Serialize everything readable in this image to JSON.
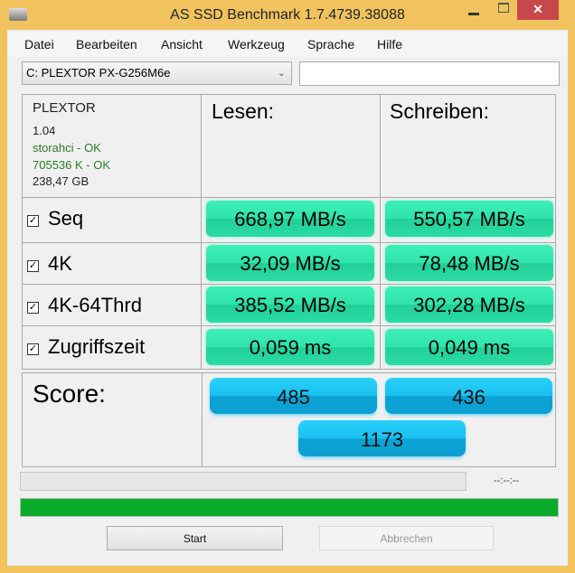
{
  "window": {
    "title": "AS SSD Benchmark 1.7.4739.38088"
  },
  "menu": [
    "Datei",
    "Bearbeiten",
    "Ansicht",
    "Werkzeug",
    "Sprache",
    "Hilfe"
  ],
  "drive_select": {
    "value": "C: PLEXTOR PX-G256M6e"
  },
  "text_field": {
    "value": ""
  },
  "drive_info": {
    "model": "PLEXTOR",
    "firmware": "1.04",
    "driver": "storahci - OK",
    "alignment": "705536 K - OK",
    "size": "238,47 GB"
  },
  "headers": {
    "read": "Lesen:",
    "write": "Schreiben:"
  },
  "tests": [
    {
      "label": "Seq",
      "checked": true,
      "read": "668,97 MB/s",
      "write": "550,57 MB/s"
    },
    {
      "label": "4K",
      "checked": true,
      "read": "32,09 MB/s",
      "write": "78,48 MB/s"
    },
    {
      "label": "4K-64Thrd",
      "checked": true,
      "read": "385,52 MB/s",
      "write": "302,28 MB/s"
    },
    {
      "label": "Zugriffszeit",
      "checked": true,
      "read": "0,059 ms",
      "write": "0,049 ms"
    }
  ],
  "score": {
    "label": "Score:",
    "read": "485",
    "write": "436",
    "total": "1173"
  },
  "progress": {
    "time": "--:--:--",
    "test_progress_percent": 0,
    "overall_progress_percent": 100
  },
  "buttons": {
    "start": "Start",
    "cancel": "Abbrechen"
  },
  "colors": {
    "frame": "#f0c35f",
    "result": "#2fe3aa",
    "score": "#19c0f0",
    "progress": "#0aab2a"
  }
}
